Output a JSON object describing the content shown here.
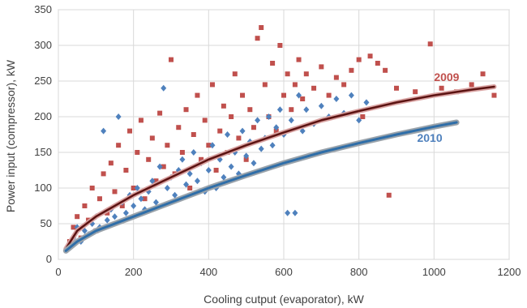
{
  "chart_data": {
    "type": "scatter",
    "title": "",
    "xlabel": "Cooling cutput (evaporator), kW",
    "ylabel": "Power input (compressor), kW",
    "xlim": [
      0,
      1200
    ],
    "ylim": [
      0,
      350
    ],
    "xticks": [
      "0",
      "200",
      "400",
      "600",
      "800",
      "1000",
      "1200"
    ],
    "yticks": [
      "0",
      "50",
      "100",
      "150",
      "200",
      "250",
      "300",
      "350"
    ],
    "grid": true,
    "series": [
      {
        "name": "2009",
        "color": "#c0504d",
        "marker": "square",
        "points": [
          [
            30,
            25
          ],
          [
            40,
            45
          ],
          [
            50,
            60
          ],
          [
            60,
            30
          ],
          [
            70,
            75
          ],
          [
            80,
            55
          ],
          [
            90,
            100
          ],
          [
            100,
            40
          ],
          [
            110,
            85
          ],
          [
            120,
            120
          ],
          [
            130,
            65
          ],
          [
            140,
            135
          ],
          [
            150,
            95
          ],
          [
            160,
            160
          ],
          [
            170,
            75
          ],
          [
            180,
            125
          ],
          [
            190,
            180
          ],
          [
            200,
            100
          ],
          [
            210,
            150
          ],
          [
            220,
            195
          ],
          [
            230,
            85
          ],
          [
            240,
            140
          ],
          [
            250,
            170
          ],
          [
            260,
            110
          ],
          [
            270,
            205
          ],
          [
            280,
            130
          ],
          [
            290,
            160
          ],
          [
            300,
            280
          ],
          [
            310,
            120
          ],
          [
            320,
            185
          ],
          [
            330,
            150
          ],
          [
            340,
            210
          ],
          [
            350,
            100
          ],
          [
            360,
            175
          ],
          [
            370,
            230
          ],
          [
            380,
            140
          ],
          [
            390,
            195
          ],
          [
            400,
            160
          ],
          [
            410,
            245
          ],
          [
            420,
            125
          ],
          [
            430,
            180
          ],
          [
            440,
            215
          ],
          [
            450,
            150
          ],
          [
            460,
            200
          ],
          [
            470,
            260
          ],
          [
            480,
            170
          ],
          [
            490,
            230
          ],
          [
            500,
            140
          ],
          [
            510,
            210
          ],
          [
            520,
            185
          ],
          [
            530,
            310
          ],
          [
            540,
            325
          ],
          [
            550,
            245
          ],
          [
            560,
            200
          ],
          [
            570,
            275
          ],
          [
            580,
            180
          ],
          [
            590,
            300
          ],
          [
            600,
            230
          ],
          [
            610,
            260
          ],
          [
            620,
            210
          ],
          [
            630,
            245
          ],
          [
            640,
            280
          ],
          [
            650,
            225
          ],
          [
            660,
            260
          ],
          [
            680,
            240
          ],
          [
            700,
            270
          ],
          [
            720,
            230
          ],
          [
            740,
            255
          ],
          [
            760,
            245
          ],
          [
            780,
            265
          ],
          [
            800,
            280
          ],
          [
            810,
            200
          ],
          [
            830,
            285
          ],
          [
            850,
            275
          ],
          [
            870,
            265
          ],
          [
            880,
            90
          ],
          [
            900,
            240
          ],
          [
            950,
            235
          ],
          [
            990,
            302
          ],
          [
            1020,
            240
          ],
          [
            1060,
            235
          ],
          [
            1100,
            245
          ],
          [
            1130,
            260
          ],
          [
            1160,
            230
          ]
        ],
        "trend": [
          [
            20,
            15
          ],
          [
            50,
            40
          ],
          [
            100,
            60
          ],
          [
            200,
            90
          ],
          [
            300,
            115
          ],
          [
            400,
            140
          ],
          [
            500,
            160
          ],
          [
            600,
            178
          ],
          [
            700,
            195
          ],
          [
            800,
            208
          ],
          [
            900,
            220
          ],
          [
            1000,
            230
          ],
          [
            1100,
            238
          ],
          [
            1160,
            242
          ]
        ]
      },
      {
        "name": "2010",
        "color": "#4f81bd",
        "marker": "diamond",
        "points": [
          [
            30,
            20
          ],
          [
            40,
            30
          ],
          [
            50,
            45
          ],
          [
            60,
            25
          ],
          [
            70,
            40
          ],
          [
            80,
            35
          ],
          [
            90,
            50
          ],
          [
            100,
            60
          ],
          [
            110,
            45
          ],
          [
            120,
            180
          ],
          [
            130,
            55
          ],
          [
            140,
            70
          ],
          [
            150,
            60
          ],
          [
            160,
            200
          ],
          [
            170,
            80
          ],
          [
            180,
            65
          ],
          [
            190,
            90
          ],
          [
            200,
            75
          ],
          [
            210,
            100
          ],
          [
            220,
            85
          ],
          [
            230,
            70
          ],
          [
            240,
            95
          ],
          [
            250,
            110
          ],
          [
            260,
            80
          ],
          [
            270,
            130
          ],
          [
            280,
            240
          ],
          [
            290,
            100
          ],
          [
            300,
            115
          ],
          [
            310,
            90
          ],
          [
            320,
            125
          ],
          [
            330,
            140
          ],
          [
            340,
            105
          ],
          [
            350,
            120
          ],
          [
            360,
            150
          ],
          [
            370,
            110
          ],
          [
            380,
            135
          ],
          [
            390,
            95
          ],
          [
            400,
            125
          ],
          [
            410,
            160
          ],
          [
            420,
            100
          ],
          [
            430,
            140
          ],
          [
            440,
            115
          ],
          [
            450,
            175
          ],
          [
            460,
            130
          ],
          [
            470,
            150
          ],
          [
            480,
            120
          ],
          [
            490,
            180
          ],
          [
            500,
            145
          ],
          [
            510,
            165
          ],
          [
            520,
            135
          ],
          [
            530,
            195
          ],
          [
            540,
            155
          ],
          [
            550,
            170
          ],
          [
            560,
            200
          ],
          [
            570,
            160
          ],
          [
            580,
            185
          ],
          [
            590,
            210
          ],
          [
            600,
            175
          ],
          [
            610,
            65
          ],
          [
            620,
            195
          ],
          [
            630,
            65
          ],
          [
            640,
            230
          ],
          [
            650,
            180
          ],
          [
            660,
            210
          ],
          [
            680,
            190
          ],
          [
            700,
            215
          ],
          [
            720,
            200
          ],
          [
            740,
            225
          ],
          [
            760,
            205
          ],
          [
            780,
            230
          ],
          [
            800,
            195
          ],
          [
            820,
            220
          ]
        ],
        "trend": [
          [
            20,
            12
          ],
          [
            50,
            25
          ],
          [
            100,
            40
          ],
          [
            200,
            60
          ],
          [
            300,
            80
          ],
          [
            400,
            100
          ],
          [
            500,
            118
          ],
          [
            600,
            135
          ],
          [
            700,
            150
          ],
          [
            800,
            163
          ],
          [
            900,
            175
          ],
          [
            1000,
            186
          ],
          [
            1060,
            192
          ]
        ]
      }
    ]
  }
}
